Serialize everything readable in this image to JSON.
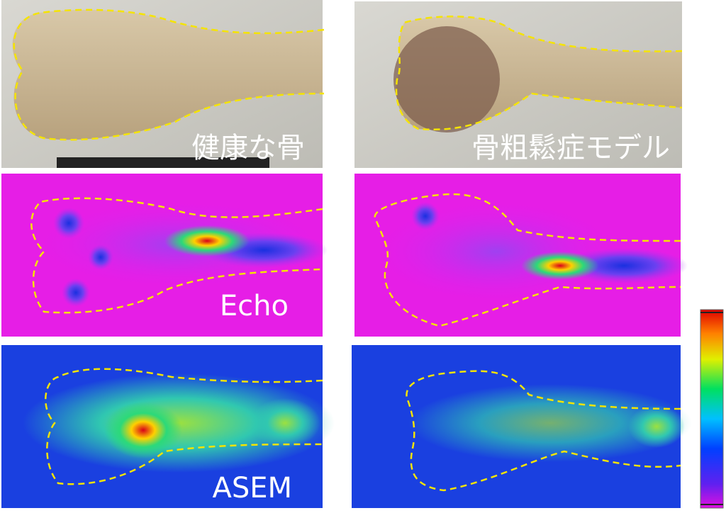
{
  "photo_labels": [
    "健康な骨",
    "骨粗鬆症モデル"
  ],
  "rows": {
    "echo": "Echo",
    "asem": "ASEM"
  }
}
